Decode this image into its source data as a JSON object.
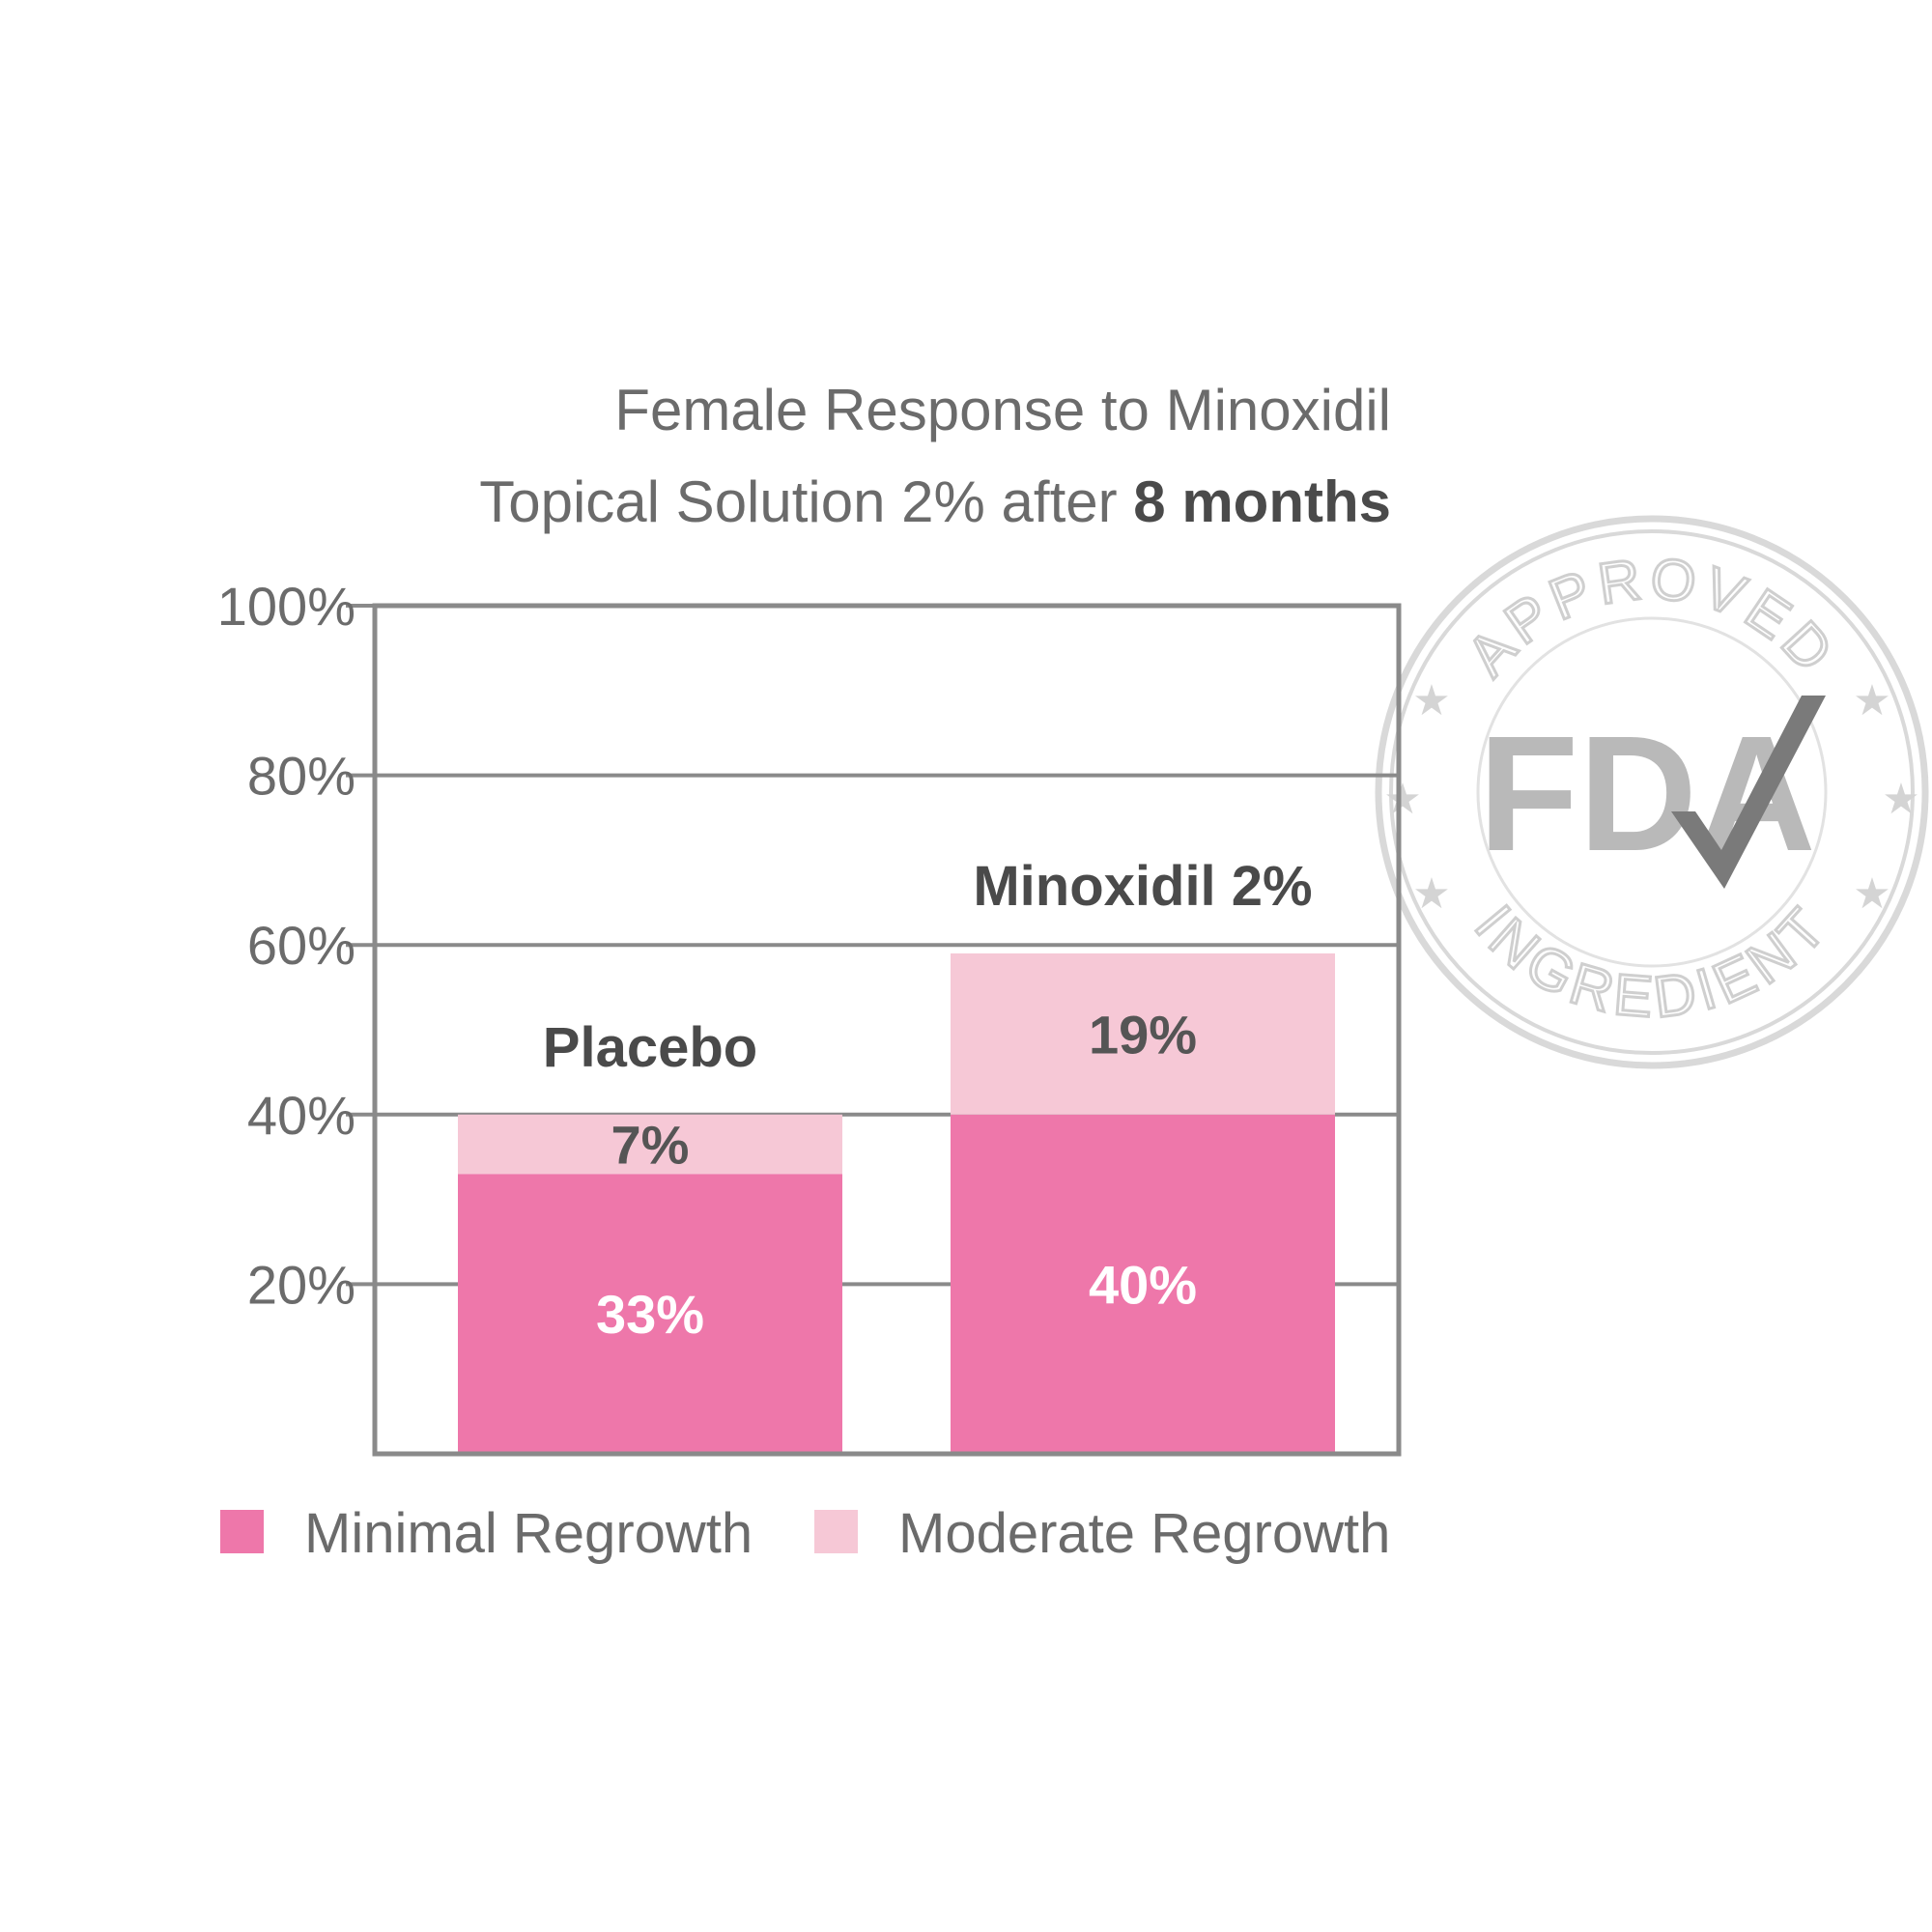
{
  "chart_data": {
    "type": "bar",
    "stacked": true,
    "title_line1": "Female Response to Minoxidil",
    "title_line2_prefix": "Topical Solution 2% after ",
    "title_line2_bold": "8 months",
    "categories": [
      "Placebo",
      "Minoxidil 2%"
    ],
    "series": [
      {
        "name": "Minimal Regrowth",
        "values": [
          33,
          40
        ],
        "labels": [
          "33%",
          "40%"
        ],
        "color": "#ee77aa",
        "label_color": "#ffffff"
      },
      {
        "name": "Moderate Regrowth",
        "values": [
          7,
          19
        ],
        "labels": [
          "7%",
          "19%"
        ],
        "color": "#f6c8d6",
        "label_color": "#555555"
      }
    ],
    "ylim": [
      0,
      100
    ],
    "yticks": [
      20,
      40,
      60,
      80,
      100
    ],
    "ytick_labels": [
      "20%",
      "40%",
      "60%",
      "80%",
      "100%"
    ],
    "grid": true,
    "legend_position": "bottom"
  },
  "seal": {
    "top_text": "APPROVED",
    "center_text": "FDA",
    "bottom_text": "INGREDIENT"
  }
}
